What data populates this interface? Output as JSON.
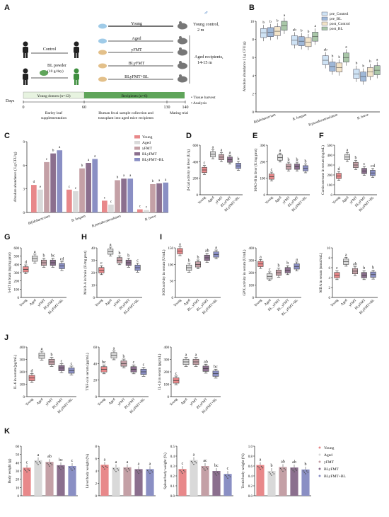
{
  "colors": {
    "young": "#e8888a",
    "aged": "#d9d9d9",
    "yfmt": "#c4a0a6",
    "blyfmt": "#8b6f8e",
    "blyfmt_bl": "#8a8fc4",
    "pre_control": "#cfe3f5",
    "pre_bl": "#9fb8d8",
    "post_control": "#f3e4c8",
    "post_bl": "#a9c7a8",
    "green_bar": "#5fa55a"
  },
  "panelA": {
    "letter": "A",
    "groups": [
      "Young",
      "Aged",
      "yFMT",
      "BLyFMT",
      "BLyFMT+BL"
    ],
    "young_control": [
      "Young control,",
      "2 m"
    ],
    "aged_recipients": [
      "Aged recipients,",
      "14-15 m"
    ],
    "control": "Control",
    "bl_powder": [
      "BL powder",
      "(10 g/day)"
    ],
    "days": "Days",
    "young_donors": "Young donors (n=12)",
    "recipients": "Recipients (n=6)",
    "ticks": [
      "0",
      "60",
      "130",
      "140"
    ],
    "notes": [
      "Tissue harvest",
      "Analysis"
    ],
    "steps": [
      "Barley leaf",
      "supplementation",
      "Human fecal sample collection and",
      "transplant into aged mice recipients",
      "Mating trial"
    ]
  },
  "chart_data": [
    {
      "panel": "B",
      "type": "box",
      "ylabel": "Absolute abundance ( Lg CFU/g)",
      "categories": [
        "Bifidobacterium",
        "B. longum",
        "B.pseudocatenulatum",
        "B. breve"
      ],
      "legend": [
        "pre_Control",
        "pre_BL",
        "post_Control",
        "post_BL"
      ],
      "series": [
        {
          "name": "pre_Control",
          "values": [
            8.7,
            7.9,
            5.7,
            4.2
          ]
        },
        {
          "name": "pre_BL",
          "values": [
            8.8,
            7.8,
            5.0,
            3.9
          ]
        },
        {
          "name": "post_Control",
          "values": [
            8.9,
            7.7,
            4.9,
            4.4
          ]
        },
        {
          "name": "post_BL",
          "values": [
            9.5,
            8.3,
            6.0,
            4.6
          ]
        }
      ],
      "letters": [
        [
          "b",
          "b",
          "b",
          "a"
        ],
        [
          "ab",
          "b",
          "b",
          "a"
        ],
        [
          "ab",
          "b",
          "b",
          "a"
        ],
        [
          "b",
          "b",
          "b",
          "a"
        ]
      ],
      "yticks": [
        "0",
        "2",
        "4",
        "6",
        "8",
        "10"
      ],
      "ylim": [
        0,
        10
      ]
    },
    {
      "panel": "C",
      "type": "bar",
      "ylabel": "Absolute abundance ( Lg CFU/g)",
      "categories": [
        "Bifidobacterium",
        "B. longum",
        "B.pseudocatenulatum",
        "B. breve"
      ],
      "legend": [
        "Young",
        "Aged",
        "yFMT",
        "BLyFMT",
        "BLyFMT+BL"
      ],
      "series": [
        {
          "name": "Young",
          "values": [
            3.5,
            2.9,
            1.5,
            0.4
          ]
        },
        {
          "name": "Aged",
          "values": [
            2.9,
            2.7,
            1.0,
            0.3
          ]
        },
        {
          "name": "yFMT",
          "values": [
            6.4,
            5.6,
            4.1,
            3.6
          ]
        },
        {
          "name": "BLyFMT",
          "values": [
            7.5,
            6.3,
            4.3,
            3.7
          ]
        },
        {
          "name": "BLyFMT+BL",
          "values": [
            7.9,
            6.8,
            4.3,
            3.8
          ]
        }
      ],
      "letters": [
        [
          "d",
          "e",
          "c",
          "b",
          "a"
        ],
        [
          "c",
          "c",
          "b",
          "a",
          "a"
        ],
        [
          "c",
          "c",
          "b",
          "a",
          "a"
        ],
        [
          "c",
          "c",
          "b",
          "a",
          "a"
        ]
      ],
      "yticks": [
        "0",
        "3",
        "6",
        "9"
      ],
      "ylim": [
        0,
        9
      ]
    },
    {
      "panel": "D",
      "type": "box",
      "ylabel": "β-Gal activity in liver (U/g)",
      "categories": [
        "Young",
        "Aged",
        "yFMT",
        "BLyFMT",
        "BLyFMT+BL"
      ],
      "values": [
        300,
        490,
        455,
        425,
        350
      ],
      "letters": [
        "c",
        "a",
        "a",
        "a",
        "b"
      ],
      "yticks": [
        "0",
        "200",
        "400",
        "600"
      ],
      "ylim": [
        0,
        600
      ]
    },
    {
      "panel": "E",
      "type": "box",
      "ylabel": "MAO-B in liver (U/mg prot)",
      "categories": [
        "Young",
        "Aged",
        "yFMT",
        "BLyFMT",
        "BLyFMT+BL"
      ],
      "values": [
        110,
        225,
        170,
        170,
        160
      ],
      "letters": [
        "c",
        "a",
        "b",
        "b",
        "b"
      ],
      "yticks": [
        "0",
        "100",
        "200",
        "300"
      ],
      "ylim": [
        0,
        300
      ]
    },
    {
      "panel": "F",
      "type": "box",
      "ylabel": "Corticosterone in serum (ng/mL)",
      "categories": [
        "Young",
        "Aged",
        "yFMT",
        "BLyFMT",
        "BLyFMT+BL"
      ],
      "values": [
        190,
        380,
        300,
        240,
        220
      ],
      "letters": [
        "d",
        "a",
        "b",
        "c",
        "cd"
      ],
      "yticks": [
        "0",
        "100",
        "200",
        "300",
        "400",
        "500"
      ],
      "ylim": [
        0,
        500
      ]
    },
    {
      "panel": "G",
      "type": "box",
      "ylabel": "5-HT in brain (ng/mg prot)",
      "categories": [
        "Young",
        "Aged",
        "yFMT",
        "BLyFMT",
        "BLyFMT+BL"
      ],
      "values": [
        340,
        470,
        420,
        420,
        380
      ],
      "letters": [
        "d",
        "a",
        "b",
        "bc",
        "cd"
      ],
      "yticks": [
        "0",
        "100",
        "200",
        "300",
        "400",
        "500",
        "600"
      ],
      "ylim": [
        0,
        600
      ]
    },
    {
      "panel": "H",
      "type": "box",
      "ylabel": "MAO-A in brain (U/mg prot)",
      "categories": [
        "Young",
        "Aged",
        "yFMT",
        "BLyFMT",
        "BLyFMT+BL"
      ],
      "values": [
        22,
        37,
        30,
        28,
        24
      ],
      "letters": [
        "c",
        "a",
        "b",
        "b",
        "c"
      ],
      "yticks": [
        "0",
        "10",
        "20",
        "30",
        "40"
      ],
      "ylim": [
        0,
        40
      ]
    },
    {
      "panel": "I1",
      "type": "box",
      "ylabel": "SOD activity in serum (U/mL)",
      "categories": [
        "Young",
        "Aged",
        "BL_yFMT",
        "BL_yFMT",
        "BLyFMT+BL"
      ],
      "values": [
        140,
        90,
        100,
        120,
        130
      ],
      "letters": [
        "a",
        "b",
        "b",
        "ab",
        "a"
      ],
      "yticks": [
        "0",
        "50",
        "100",
        "150"
      ],
      "ylim": [
        0,
        150
      ]
    },
    {
      "panel": "I2",
      "type": "box",
      "ylabel": "GPX activity in serum (U/mL)",
      "categories": [
        "Young",
        "Aged",
        "BL_yFMT",
        "BL_yFMT",
        "BL_yFMT+BL"
      ],
      "values": [
        270,
        170,
        200,
        220,
        250
      ],
      "letters": [
        "a",
        "c",
        "b",
        "b",
        "a"
      ],
      "yticks": [
        "0",
        "100",
        "200",
        "300",
        "400"
      ],
      "ylim": [
        0,
        400
      ]
    },
    {
      "panel": "I3",
      "type": "box",
      "ylabel": "MDA in serum (nmol/mL)",
      "categories": [
        "Young",
        "Aged",
        "yFMT",
        "BLyFMT",
        "BLyFMT+BL"
      ],
      "values": [
        4.5,
        7.2,
        5.3,
        4.5,
        4.6
      ],
      "letters": [
        "c",
        "a",
        "ab",
        "b",
        "b"
      ],
      "yticks": [
        "0",
        "2",
        "4",
        "6",
        "8",
        "10"
      ],
      "ylim": [
        0,
        10
      ]
    },
    {
      "panel": "J1",
      "type": "box",
      "ylabel": "IL-6 in serum (pg/mL)",
      "categories": [
        "Young",
        "Aged",
        "yFMT",
        "BLyFMT",
        "BLyFMT+BL"
      ],
      "values": [
        150,
        330,
        280,
        230,
        210
      ],
      "letters": [
        "d",
        "a",
        "b",
        "c",
        "c"
      ],
      "yticks": [
        "0",
        "100",
        "200",
        "300",
        "400"
      ],
      "ylim": [
        0,
        400
      ]
    },
    {
      "panel": "J2",
      "type": "box",
      "ylabel": "TNF-α in serum (pg/mL)",
      "categories": [
        "Young",
        "Aged",
        "yFMT",
        "BLyFMT",
        "BLyFMT+BL"
      ],
      "values": [
        33,
        50,
        40,
        33,
        30
      ],
      "letters": [
        "bc",
        "a",
        "b",
        "c",
        "c"
      ],
      "yticks": [
        "0",
        "20",
        "40",
        "60"
      ],
      "ylim": [
        0,
        60
      ]
    },
    {
      "panel": "J3",
      "type": "box",
      "ylabel": "IL-1β in serum (pg/mL)",
      "categories": [
        "Young",
        "Aged",
        "yFMT",
        "BLyFMT",
        "BLyFMT+BL"
      ],
      "values": [
        130,
        280,
        280,
        225,
        185
      ],
      "letters": [
        "c",
        "a",
        "a",
        "ab",
        "bc"
      ],
      "yticks": [
        "0",
        "100",
        "200",
        "300",
        "400"
      ],
      "ylim": [
        0,
        400
      ]
    },
    {
      "panel": "K1",
      "type": "bar",
      "ylabel": "Body weight (g)",
      "categories": [
        "Young",
        "Aged",
        "yFMT",
        "BLyFMT",
        "BLyFMT+BL"
      ],
      "values": [
        34,
        43,
        41,
        37,
        36
      ],
      "letters": [
        "c",
        "a",
        "ab",
        "bc",
        "c"
      ],
      "yticks": [
        "0",
        "10",
        "20",
        "30",
        "40",
        "50",
        "60"
      ],
      "ylim": [
        0,
        60
      ]
    },
    {
      "panel": "K2",
      "type": "bar",
      "ylabel": "Liver/body weight (%)",
      "categories": [
        "Young",
        "Aged",
        "yFMT",
        "BLyFMT",
        "BLyFMT+BL"
      ],
      "values": [
        5.0,
        4.6,
        4.6,
        4.3,
        4.3
      ],
      "letters": [
        "a",
        "a",
        "a",
        "a",
        "a"
      ],
      "yticks": [
        "0",
        "2",
        "4",
        "6",
        "8"
      ],
      "ylim": [
        0,
        8
      ]
    },
    {
      "panel": "K3",
      "type": "bar",
      "ylabel": "Spleen/body weight (%)",
      "categories": [
        "Young",
        "Aged",
        "yFMT",
        "BLyFMT",
        "BLyFMT+BL"
      ],
      "values": [
        0.27,
        0.36,
        0.3,
        0.25,
        0.22
      ],
      "letters": [
        "c",
        "a",
        "ac",
        "bc",
        "c"
      ],
      "yticks": [
        "0.0",
        "0.1",
        "0.2",
        "0.3",
        "0.4",
        "0.5"
      ],
      "ylim": [
        0,
        0.5
      ]
    },
    {
      "panel": "K4",
      "type": "bar",
      "ylabel": "Testis/body weight (%)",
      "categories": [
        "Young",
        "Aged",
        "yFMT",
        "BLyFMT",
        "BLyFMT+BL"
      ],
      "values": [
        0.62,
        0.5,
        0.58,
        0.57,
        0.53
      ],
      "letters": [
        "a",
        "b",
        "ab",
        "ab",
        "b"
      ],
      "yticks": [
        "0.0",
        "0.2",
        "0.4",
        "0.6",
        "0.8",
        "1.0"
      ],
      "ylim": [
        0,
        1.0
      ]
    }
  ],
  "panel_letters": {
    "B": "B",
    "C": "C",
    "D": "D",
    "E": "E",
    "F": "F",
    "G": "G",
    "H": "H",
    "I": "I",
    "J": "J",
    "K": "K"
  }
}
